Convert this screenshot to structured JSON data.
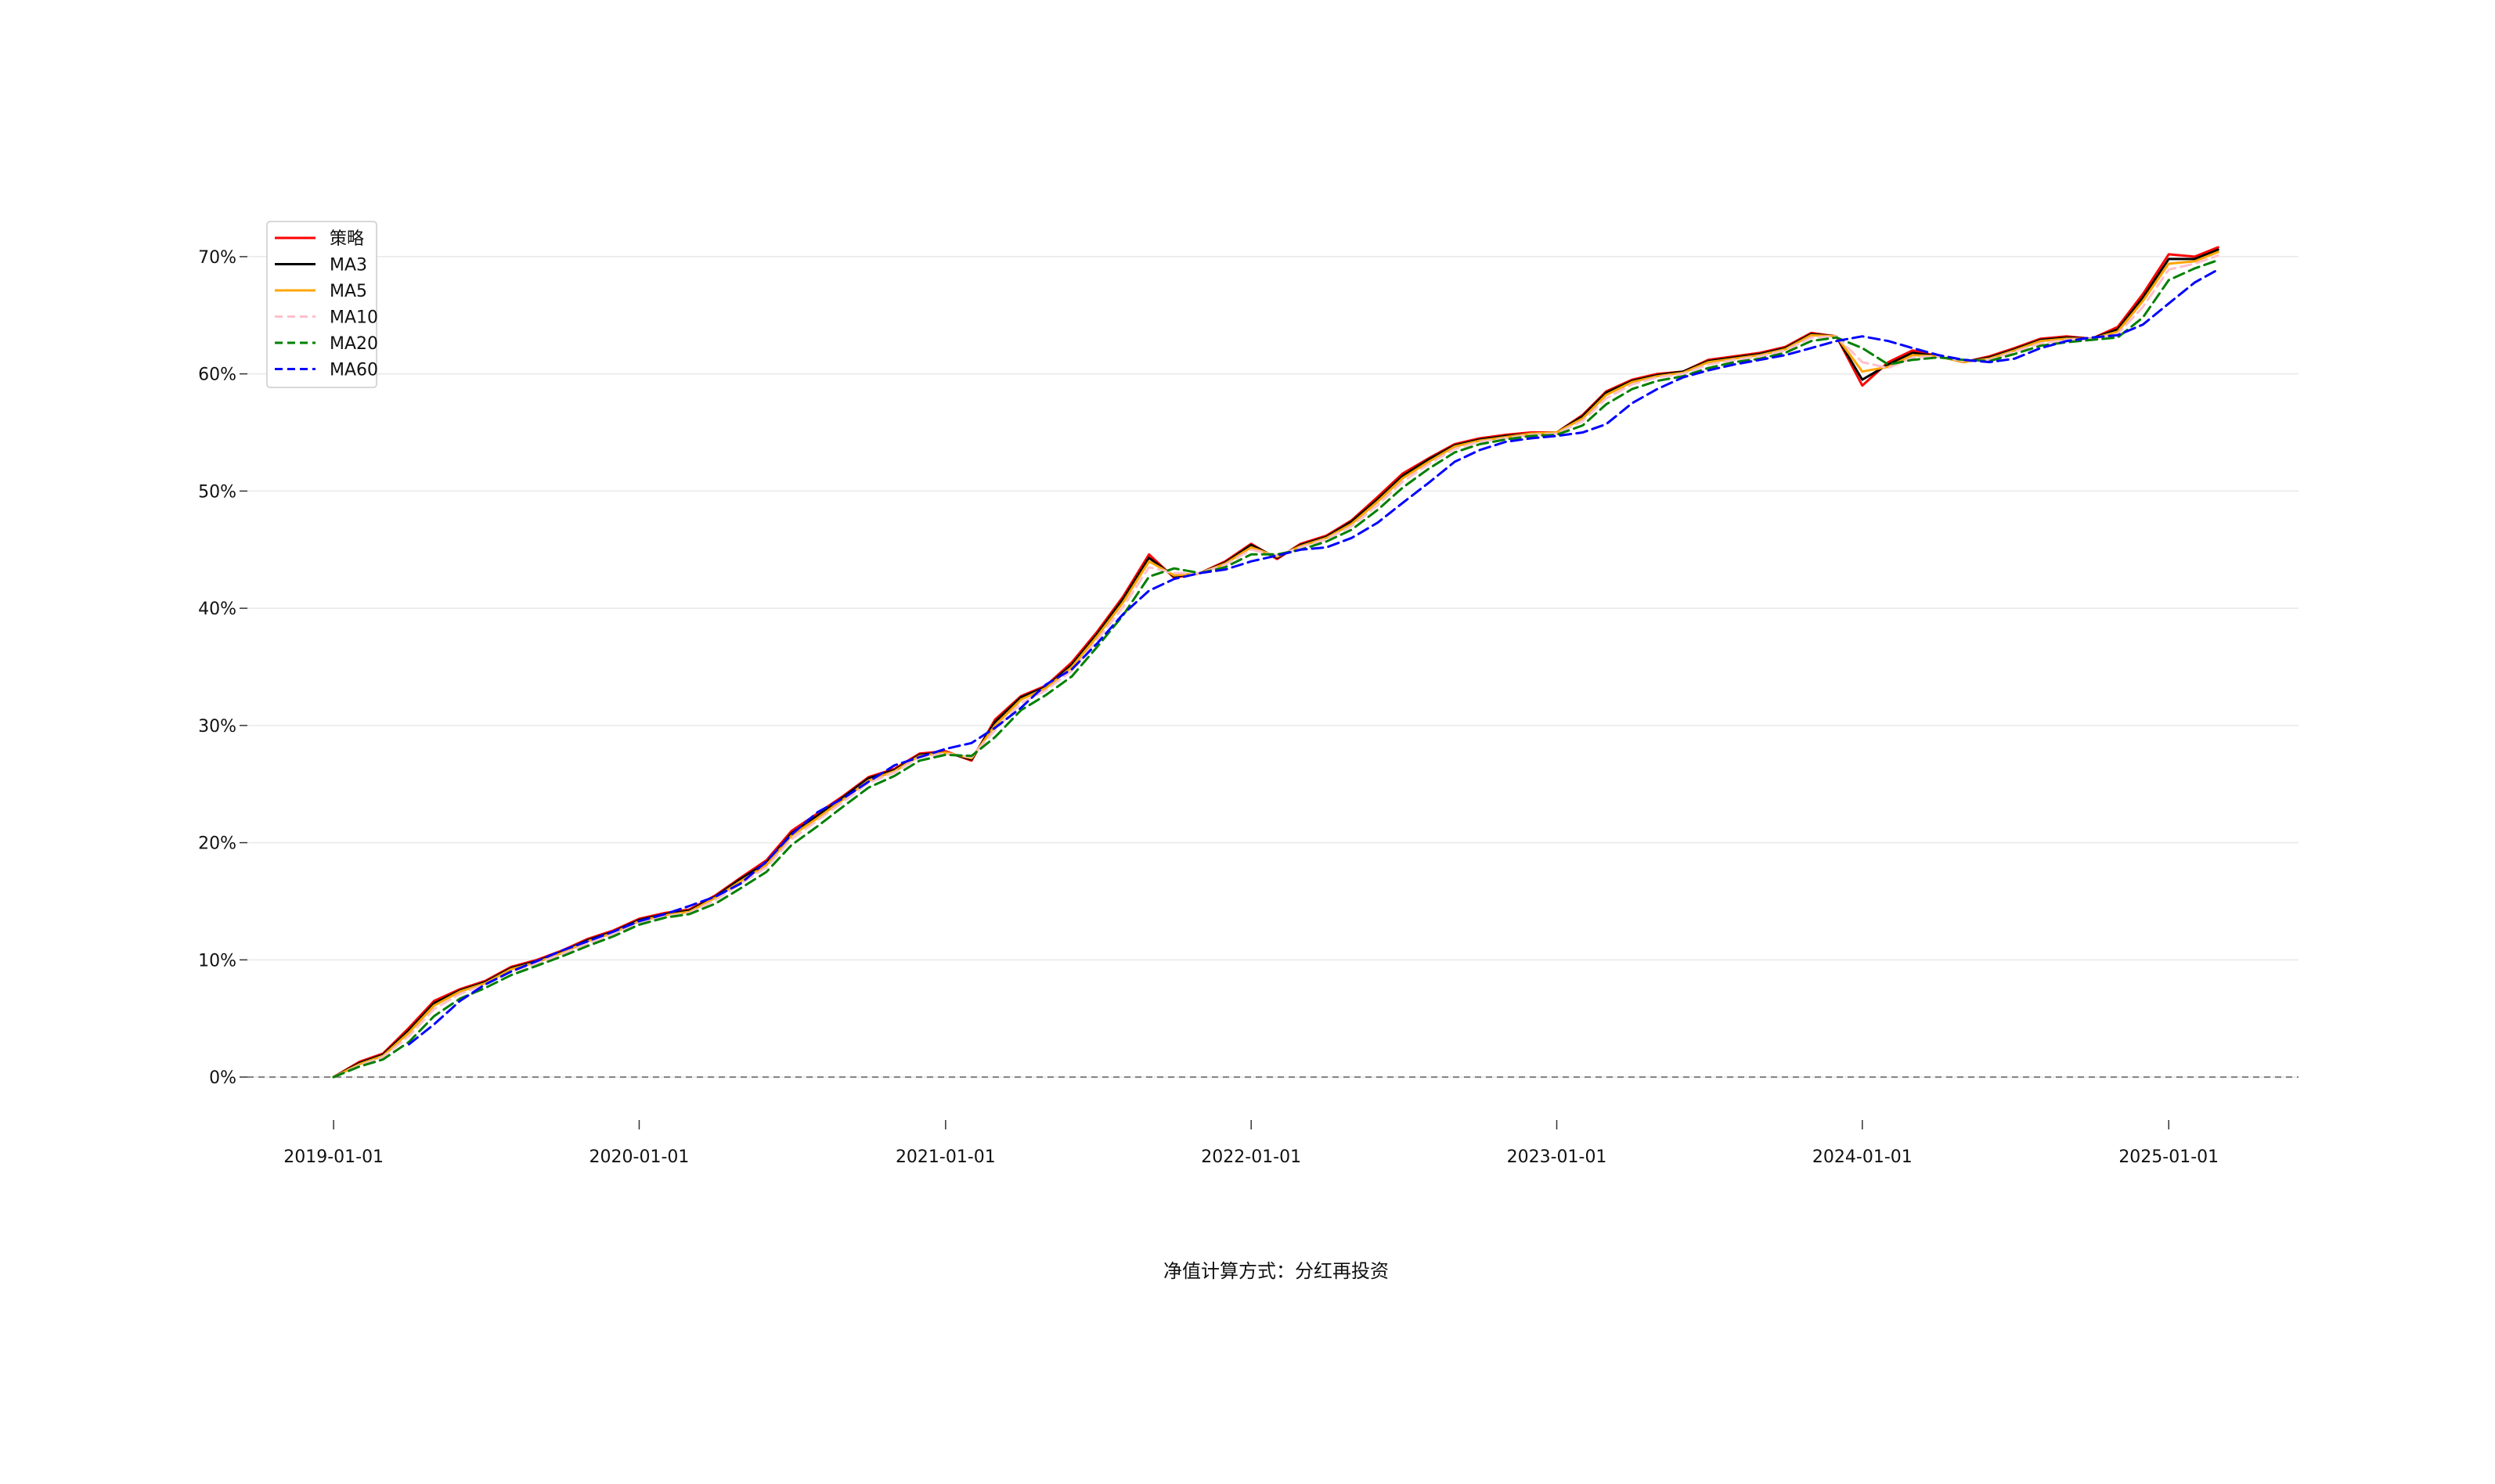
{
  "chart_data": {
    "type": "line",
    "title": "",
    "xlabel": "",
    "ylabel": "",
    "footnote": "净值计算方式：分红再投资",
    "x_ticks": [
      "2019-01-01",
      "2020-01-01",
      "2021-01-01",
      "2022-01-01",
      "2023-01-01",
      "2024-01-01",
      "2025-01-01"
    ],
    "y_ticks": [
      "0%",
      "10%",
      "20%",
      "30%",
      "40%",
      "50%",
      "60%",
      "70%"
    ],
    "ylim": [
      -3,
      73
    ],
    "xlim": [
      "2018-09-20",
      "2025-06-05"
    ],
    "grid": "horizontal",
    "zero_line": true,
    "legend_position": "upper-left",
    "x": [
      "2019-01-01",
      "2019-02-01",
      "2019-03-01",
      "2019-04-01",
      "2019-05-01",
      "2019-06-01",
      "2019-07-01",
      "2019-08-01",
      "2019-09-01",
      "2019-10-01",
      "2019-11-01",
      "2019-12-01",
      "2020-01-01",
      "2020-02-01",
      "2020-03-01",
      "2020-04-01",
      "2020-05-01",
      "2020-06-01",
      "2020-07-01",
      "2020-08-01",
      "2020-09-01",
      "2020-10-01",
      "2020-11-01",
      "2020-12-01",
      "2021-01-01",
      "2021-02-01",
      "2021-03-01",
      "2021-04-01",
      "2021-05-01",
      "2021-06-01",
      "2021-07-01",
      "2021-08-01",
      "2021-09-01",
      "2021-10-01",
      "2021-11-01",
      "2021-12-01",
      "2022-01-01",
      "2022-02-01",
      "2022-03-01",
      "2022-04-01",
      "2022-05-01",
      "2022-06-01",
      "2022-07-01",
      "2022-08-01",
      "2022-09-01",
      "2022-10-01",
      "2022-11-01",
      "2022-12-01",
      "2023-01-01",
      "2023-02-01",
      "2023-03-01",
      "2023-04-01",
      "2023-05-01",
      "2023-06-01",
      "2023-07-01",
      "2023-08-01",
      "2023-09-01",
      "2023-10-01",
      "2023-11-01",
      "2023-12-01",
      "2024-01-01",
      "2024-02-01",
      "2024-03-01",
      "2024-04-01",
      "2024-05-01",
      "2024-06-01",
      "2024-07-01",
      "2024-08-01",
      "2024-09-01",
      "2024-10-01",
      "2024-11-01",
      "2024-12-01",
      "2025-01-01",
      "2025-02-01",
      "2025-03-01"
    ],
    "series": [
      {
        "name": "策略",
        "color": "#ff0000",
        "dash": "solid",
        "values": [
          0.0,
          1.3,
          2.0,
          4.2,
          6.5,
          7.5,
          8.2,
          9.4,
          10.0,
          10.8,
          11.8,
          12.5,
          13.5,
          14.0,
          14.3,
          15.5,
          17.0,
          18.5,
          21.0,
          22.5,
          24.0,
          25.6,
          26.3,
          27.6,
          27.8,
          27.0,
          30.5,
          32.5,
          33.4,
          35.4,
          38.0,
          41.0,
          44.6,
          42.6,
          43.0,
          44.0,
          45.5,
          44.2,
          45.5,
          46.2,
          47.5,
          49.5,
          51.5,
          52.8,
          54.0,
          54.5,
          54.8,
          55.0,
          55.0,
          56.5,
          58.5,
          59.5,
          60.0,
          60.2,
          61.2,
          61.5,
          61.8,
          62.3,
          63.5,
          63.2,
          59.0,
          61.0,
          62.0,
          61.5,
          61.0,
          61.5,
          62.2,
          63.0,
          63.2,
          63.0,
          64.0,
          66.8,
          70.2,
          70.0,
          70.8
        ]
      },
      {
        "name": "MA3",
        "color": "#000000",
        "dash": "solid",
        "values": [
          0.0,
          1.2,
          1.9,
          4.0,
          6.3,
          7.4,
          8.1,
          9.3,
          9.9,
          10.7,
          11.7,
          12.4,
          13.4,
          13.9,
          14.2,
          15.4,
          16.9,
          18.3,
          20.8,
          22.3,
          23.9,
          25.5,
          26.2,
          27.5,
          27.7,
          27.1,
          30.3,
          32.4,
          33.3,
          35.2,
          37.8,
          40.8,
          44.3,
          42.7,
          43.0,
          43.9,
          45.4,
          44.3,
          45.4,
          46.1,
          47.4,
          49.3,
          51.3,
          52.7,
          53.9,
          54.4,
          54.7,
          54.9,
          55.0,
          56.4,
          58.4,
          59.4,
          59.9,
          60.2,
          61.1,
          61.4,
          61.7,
          62.2,
          63.4,
          63.2,
          59.5,
          60.8,
          61.8,
          61.5,
          61.0,
          61.4,
          62.1,
          62.9,
          63.1,
          63.0,
          63.8,
          66.5,
          69.8,
          69.8,
          70.6
        ]
      },
      {
        "name": "MA5",
        "color": "#ffa500",
        "dash": "solid",
        "values": [
          0.0,
          1.1,
          1.8,
          3.8,
          6.1,
          7.3,
          8.0,
          9.2,
          9.8,
          10.6,
          11.6,
          12.3,
          13.3,
          13.8,
          14.1,
          15.3,
          16.7,
          18.1,
          20.6,
          22.1,
          23.7,
          25.3,
          26.1,
          27.4,
          27.7,
          27.2,
          30.0,
          32.2,
          33.2,
          35.0,
          37.6,
          40.5,
          44.0,
          42.8,
          43.0,
          43.8,
          45.2,
          44.4,
          45.3,
          46.0,
          47.2,
          49.1,
          51.1,
          52.5,
          53.8,
          54.3,
          54.6,
          54.9,
          55.0,
          56.2,
          58.2,
          59.3,
          59.8,
          60.1,
          61.0,
          61.3,
          61.6,
          62.1,
          63.3,
          63.2,
          60.2,
          60.6,
          61.6,
          61.5,
          61.0,
          61.3,
          62.0,
          62.8,
          63.0,
          63.0,
          63.6,
          66.2,
          69.4,
          69.6,
          70.4
        ]
      },
      {
        "name": "MA10",
        "color": "#ffc0cb",
        "dash": "dashed",
        "values": [
          0.0,
          1.0,
          1.7,
          3.5,
          5.8,
          7.1,
          7.9,
          9.0,
          9.7,
          10.5,
          11.4,
          12.2,
          13.2,
          13.7,
          14.0,
          15.1,
          16.5,
          17.9,
          20.3,
          21.9,
          23.5,
          25.1,
          26.0,
          27.3,
          27.6,
          27.3,
          29.6,
          31.9,
          33.0,
          34.7,
          37.3,
          40.1,
          43.5,
          43.0,
          43.0,
          43.7,
          45.0,
          44.5,
          45.2,
          45.9,
          47.0,
          48.8,
          50.8,
          52.3,
          53.6,
          54.2,
          54.5,
          54.8,
          54.9,
          56.0,
          57.9,
          59.1,
          59.7,
          60.0,
          60.8,
          61.2,
          61.5,
          62.0,
          63.1,
          63.2,
          61.0,
          60.5,
          61.4,
          61.5,
          61.1,
          61.2,
          61.9,
          62.6,
          62.9,
          63.0,
          63.4,
          65.7,
          68.9,
          69.4,
          70.1
        ]
      },
      {
        "name": "MA20",
        "color": "#008000",
        "dash": "dashed",
        "values": [
          0.0,
          0.9,
          1.5,
          3.0,
          5.2,
          6.7,
          7.6,
          8.7,
          9.5,
          10.3,
          11.2,
          12.0,
          13.0,
          13.6,
          13.9,
          14.8,
          16.1,
          17.5,
          19.8,
          21.4,
          23.1,
          24.7,
          25.7,
          27.0,
          27.5,
          27.4,
          29.0,
          31.3,
          32.6,
          34.2,
          36.7,
          39.4,
          42.7,
          43.4,
          43.0,
          43.5,
          44.6,
          44.6,
          45.0,
          45.7,
          46.7,
          48.4,
          50.3,
          51.9,
          53.3,
          54.0,
          54.4,
          54.7,
          54.8,
          55.6,
          57.4,
          58.7,
          59.4,
          59.8,
          60.5,
          61.0,
          61.3,
          61.8,
          62.8,
          63.1,
          62.2,
          60.8,
          61.2,
          61.4,
          61.2,
          61.1,
          61.7,
          62.4,
          62.7,
          62.9,
          63.1,
          64.8,
          68.0,
          69.0,
          69.7
        ]
      },
      {
        "name": "MA60",
        "color": "#0000ff",
        "dash": "dashed",
        "values": [
          null,
          null,
          null,
          2.8,
          4.5,
          6.5,
          7.9,
          9.0,
          9.9,
          10.8,
          11.6,
          12.4,
          13.3,
          13.9,
          14.6,
          15.4,
          16.5,
          18.4,
          20.7,
          22.6,
          23.8,
          25.2,
          26.6,
          27.3,
          28.0,
          28.5,
          29.8,
          31.5,
          33.5,
          34.8,
          37.0,
          39.5,
          41.5,
          42.5,
          43.0,
          43.3,
          44.0,
          44.5,
          45.0,
          45.2,
          46.0,
          47.3,
          49.0,
          50.7,
          52.5,
          53.5,
          54.2,
          54.5,
          54.7,
          55.0,
          55.7,
          57.5,
          58.7,
          59.7,
          60.3,
          60.8,
          61.2,
          61.6,
          62.2,
          62.8,
          63.2,
          62.8,
          62.2,
          61.6,
          61.2,
          61.0,
          61.3,
          62.2,
          62.8,
          63.1,
          63.3,
          64.2,
          66.0,
          67.8,
          68.9
        ]
      }
    ]
  }
}
